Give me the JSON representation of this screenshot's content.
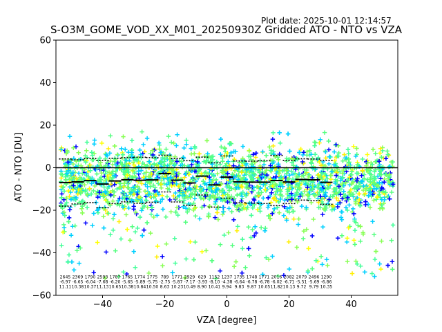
{
  "header": {
    "plot_date": "Plot date: 2025-10-01 12:14:57"
  },
  "chart_data": {
    "type": "scatter",
    "title": "S-O3M_GOME_VOD_XX_M01_20250930Z Gridded ATO - NTO vs VZA",
    "xlabel": "VZA [degree]",
    "ylabel": "ATO - NTO [DU]",
    "xlim": [
      -55,
      55
    ],
    "ylim": [
      -60,
      60
    ],
    "xticks": [
      -40,
      -20,
      0,
      20,
      40
    ],
    "yticks": [
      -60,
      -40,
      -20,
      0,
      20,
      40,
      60
    ],
    "marker": "+",
    "colors": [
      "#0000ff",
      "#00d0ff",
      "#44ff99",
      "#55ff80",
      "#88ff55",
      "#ffff00",
      "#ffee00"
    ],
    "zero_line": 0,
    "bins": [
      {
        "x": -52,
        "n": "2645",
        "mean": "-6.97",
        "sd": "11.11"
      },
      {
        "x": -48,
        "n": "2369",
        "mean": "-6.65",
        "sd": "10.38"
      },
      {
        "x": -44,
        "n": "1790",
        "mean": "-6.04",
        "sd": "10.37"
      },
      {
        "x": -40,
        "n": "2593",
        "mean": "-7.68",
        "sd": "11.13"
      },
      {
        "x": -36,
        "n": "1787",
        "mean": "-6.20",
        "sd": "10.65"
      },
      {
        "x": -32,
        "n": "1765",
        "mean": "-5.65",
        "sd": "10.38"
      },
      {
        "x": -28,
        "n": "1774",
        "mean": "-5.89",
        "sd": "10.84"
      },
      {
        "x": -24,
        "n": "1775",
        "mean": "-5.75",
        "sd": "10.50"
      },
      {
        "x": -20,
        "n": "789",
        "mean": "-2.75",
        "sd": "8.63"
      },
      {
        "x": -16,
        "n": "1771",
        "mean": "-5.87",
        "sd": "10.23"
      },
      {
        "x": -12,
        "n": "2929",
        "mean": "-7.17",
        "sd": "10.49"
      },
      {
        "x": -8,
        "n": "629",
        "mean": "-3.93",
        "sd": "8.90"
      },
      {
        "x": -4,
        "n": "1152",
        "mean": "-8.10",
        "sd": "10.41"
      },
      {
        "x": 0,
        "n": "1237",
        "mean": "-4.38",
        "sd": "9.94"
      },
      {
        "x": 4,
        "n": "1735",
        "mean": "-6.64",
        "sd": "9.83"
      },
      {
        "x": 8,
        "n": "1748",
        "mean": "-6.78",
        "sd": "9.87"
      },
      {
        "x": 12,
        "n": "1771",
        "mean": "-6.78",
        "sd": "10.05"
      },
      {
        "x": 16,
        "n": "2016",
        "mean": "-6.02",
        "sd": "11.82"
      },
      {
        "x": 20,
        "n": "2082",
        "mean": "-6.71",
        "sd": "10.13"
      },
      {
        "x": 24,
        "n": "2079",
        "mean": "-5.51",
        "sd": "9.72"
      },
      {
        "x": 28,
        "n": "2496",
        "mean": "-5.69",
        "sd": "9.79"
      },
      {
        "x": 32,
        "n": "1290",
        "mean": "-6.86",
        "sd": "10.35"
      }
    ]
  }
}
